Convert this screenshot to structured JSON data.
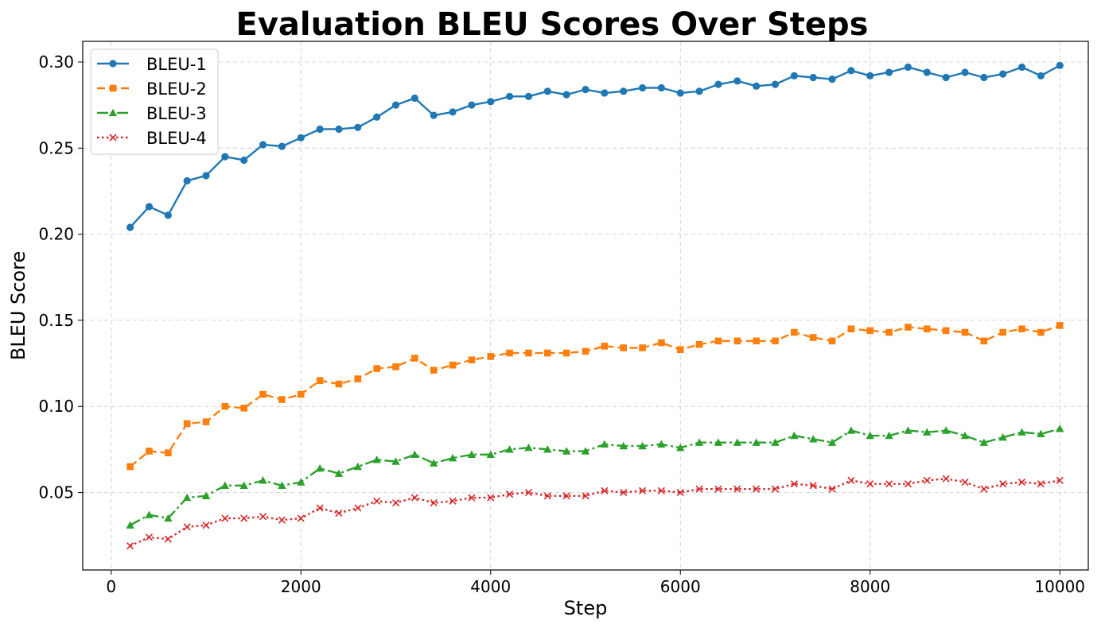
{
  "chart_data": {
    "type": "line",
    "title": "Evaluation BLEU Scores Over Steps",
    "xlabel": "Step",
    "ylabel": "BLEU Score",
    "xlim": [
      -300,
      10300
    ],
    "ylim": [
      0.005,
      0.312
    ],
    "xticks": [
      0,
      2000,
      4000,
      6000,
      8000,
      10000
    ],
    "xtick_labels": [
      "0",
      "2000",
      "4000",
      "6000",
      "8000",
      "10000"
    ],
    "yticks": [
      0.05,
      0.1,
      0.15,
      0.2,
      0.25,
      0.3
    ],
    "ytick_labels": [
      "0.05",
      "0.10",
      "0.15",
      "0.20",
      "0.25",
      "0.30"
    ],
    "grid": true,
    "legend_position": "top-left",
    "x": [
      200,
      400,
      600,
      800,
      1000,
      1200,
      1400,
      1600,
      1800,
      2000,
      2200,
      2400,
      2600,
      2800,
      3000,
      3200,
      3400,
      3600,
      3800,
      4000,
      4200,
      4400,
      4600,
      4800,
      5000,
      5200,
      5400,
      5600,
      5800,
      6000,
      6200,
      6400,
      6600,
      6800,
      7000,
      7200,
      7400,
      7600,
      7800,
      8000,
      8200,
      8400,
      8600,
      8800,
      9000,
      9200,
      9400,
      9600,
      9800,
      10000
    ],
    "series": [
      {
        "name": "BLEU-1",
        "color": "#1f77b4",
        "linestyle": "solid",
        "marker": "circle",
        "values": [
          0.204,
          0.216,
          0.211,
          0.231,
          0.234,
          0.245,
          0.243,
          0.252,
          0.251,
          0.256,
          0.261,
          0.261,
          0.262,
          0.268,
          0.275,
          0.279,
          0.269,
          0.271,
          0.275,
          0.277,
          0.28,
          0.28,
          0.283,
          0.281,
          0.284,
          0.282,
          0.283,
          0.285,
          0.285,
          0.282,
          0.283,
          0.287,
          0.289,
          0.286,
          0.287,
          0.292,
          0.291,
          0.29,
          0.295,
          0.292,
          0.294,
          0.297,
          0.294,
          0.291,
          0.294,
          0.291,
          0.293,
          0.297,
          0.292,
          0.298
        ]
      },
      {
        "name": "BLEU-2",
        "color": "#ff7f0e",
        "linestyle": "dashed",
        "marker": "square",
        "values": [
          0.065,
          0.074,
          0.073,
          0.09,
          0.091,
          0.1,
          0.099,
          0.107,
          0.104,
          0.107,
          0.115,
          0.113,
          0.116,
          0.122,
          0.123,
          0.128,
          0.121,
          0.124,
          0.127,
          0.129,
          0.131,
          0.131,
          0.131,
          0.131,
          0.132,
          0.135,
          0.134,
          0.134,
          0.137,
          0.133,
          0.136,
          0.138,
          0.138,
          0.138,
          0.138,
          0.143,
          0.14,
          0.138,
          0.145,
          0.144,
          0.143,
          0.146,
          0.145,
          0.144,
          0.143,
          0.138,
          0.143,
          0.145,
          0.143,
          0.147
        ]
      },
      {
        "name": "BLEU-3",
        "color": "#2ca02c",
        "linestyle": "dashdot",
        "marker": "triangle",
        "values": [
          0.031,
          0.037,
          0.035,
          0.047,
          0.048,
          0.054,
          0.054,
          0.057,
          0.054,
          0.056,
          0.064,
          0.061,
          0.065,
          0.069,
          0.068,
          0.072,
          0.067,
          0.07,
          0.072,
          0.072,
          0.075,
          0.076,
          0.075,
          0.074,
          0.074,
          0.078,
          0.077,
          0.077,
          0.078,
          0.076,
          0.079,
          0.079,
          0.079,
          0.079,
          0.079,
          0.083,
          0.081,
          0.079,
          0.086,
          0.083,
          0.083,
          0.086,
          0.085,
          0.086,
          0.083,
          0.079,
          0.082,
          0.085,
          0.084,
          0.087
        ]
      },
      {
        "name": "BLEU-4",
        "color": "#d62728",
        "linestyle": "dotted",
        "marker": "x",
        "values": [
          0.019,
          0.024,
          0.023,
          0.03,
          0.031,
          0.035,
          0.035,
          0.036,
          0.034,
          0.035,
          0.041,
          0.038,
          0.041,
          0.045,
          0.044,
          0.047,
          0.044,
          0.045,
          0.047,
          0.047,
          0.049,
          0.05,
          0.048,
          0.048,
          0.048,
          0.051,
          0.05,
          0.051,
          0.051,
          0.05,
          0.052,
          0.052,
          0.052,
          0.052,
          0.052,
          0.055,
          0.054,
          0.052,
          0.057,
          0.055,
          0.055,
          0.055,
          0.057,
          0.058,
          0.056,
          0.052,
          0.055,
          0.056,
          0.055,
          0.057
        ]
      }
    ]
  }
}
